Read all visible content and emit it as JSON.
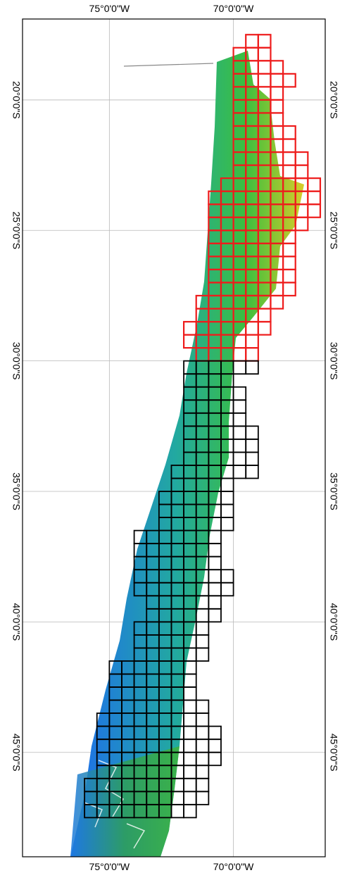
{
  "map": {
    "x_ticks": [
      {
        "label": "75°0'0\"W",
        "lon": -75
      },
      {
        "label": "70°0'0\"W",
        "lon": -70
      }
    ],
    "y_ticks": [
      {
        "label": "20°0'0\"S",
        "lat": -20
      },
      {
        "label": "25°0'0\"S",
        "lat": -25
      },
      {
        "label": "30°0'0\"S",
        "lat": -30
      },
      {
        "label": "35°0'0\"S",
        "lat": -35
      },
      {
        "label": "40°0'0\"S",
        "lat": -40
      },
      {
        "label": "45°0'0\"S",
        "lat": -45
      }
    ],
    "lon_range": [
      -78.5,
      -66.3
    ],
    "lat_range": [
      -49.0,
      -16.9
    ],
    "grid": true,
    "tile_size_deg": 0.5,
    "colors": {
      "red_tiles": "#ee1c1c",
      "black_tiles": "#000000",
      "gridline": "#b9b9b9",
      "elevation_low": "#1e6cf0",
      "elevation_mid": "#27b36a",
      "elevation_high": "#d8cc2a"
    },
    "red_tile_rows": [
      {
        "lat": -17.5,
        "lons": [
          -69.5,
          -69
        ]
      },
      {
        "lat": -18,
        "lons": [
          -70,
          -69.5,
          -69
        ]
      },
      {
        "lat": -18.5,
        "lons": [
          -70,
          -69.5,
          -69,
          -68.5
        ]
      },
      {
        "lat": -19,
        "lons": [
          -70,
          -69.5,
          -69,
          -68.5,
          -68
        ]
      },
      {
        "lat": -19.5,
        "lons": [
          -70,
          -69.5,
          -69,
          -68.5
        ]
      },
      {
        "lat": -20,
        "lons": [
          -70,
          -69.5,
          -69,
          -68.5
        ]
      },
      {
        "lat": -20.5,
        "lons": [
          -70,
          -69.5,
          -69,
          -68.5
        ]
      },
      {
        "lat": -21,
        "lons": [
          -70,
          -69.5,
          -69,
          -68.5,
          -68
        ]
      },
      {
        "lat": -21.5,
        "lons": [
          -70,
          -69.5,
          -69,
          -68.5,
          -68
        ]
      },
      {
        "lat": -22,
        "lons": [
          -70,
          -69.5,
          -69,
          -68.5,
          -68,
          -67.5
        ]
      },
      {
        "lat": -22.5,
        "lons": [
          -70,
          -69.5,
          -69,
          -68.5,
          -68,
          -67.5
        ]
      },
      {
        "lat": -23,
        "lons": [
          -70.5,
          -70,
          -69.5,
          -69,
          -68.5,
          -68,
          -67.5,
          -67
        ]
      },
      {
        "lat": -23.5,
        "lons": [
          -71,
          -70.5,
          -70,
          -69.5,
          -69,
          -68.5,
          -68,
          -67.5,
          -67
        ]
      },
      {
        "lat": -24,
        "lons": [
          -71,
          -70.5,
          -70,
          -69.5,
          -69,
          -68.5,
          -68,
          -67.5,
          -67
        ]
      },
      {
        "lat": -24.5,
        "lons": [
          -71,
          -70.5,
          -70,
          -69.5,
          -69,
          -68.5,
          -68,
          -67.5
        ]
      },
      {
        "lat": -25,
        "lons": [
          -71,
          -70.5,
          -70,
          -69.5,
          -69,
          -68.5,
          -68
        ]
      },
      {
        "lat": -25.5,
        "lons": [
          -71,
          -70.5,
          -70,
          -69.5,
          -69,
          -68.5,
          -68
        ]
      },
      {
        "lat": -26,
        "lons": [
          -71,
          -70.5,
          -70,
          -69.5,
          -69,
          -68.5,
          -68
        ]
      },
      {
        "lat": -26.5,
        "lons": [
          -71,
          -70.5,
          -70,
          -69.5,
          -69,
          -68.5,
          -68
        ]
      },
      {
        "lat": -27,
        "lons": [
          -71,
          -70.5,
          -70,
          -69.5,
          -69,
          -68.5,
          -68
        ]
      },
      {
        "lat": -27.5,
        "lons": [
          -71.5,
          -71,
          -70.5,
          -70,
          -69.5,
          -69,
          -68.5
        ]
      },
      {
        "lat": -28,
        "lons": [
          -71.5,
          -71,
          -70.5,
          -70,
          -69.5,
          -69
        ]
      },
      {
        "lat": -28.5,
        "lons": [
          -72,
          -71.5,
          -71,
          -70.5,
          -70,
          -69.5,
          -69
        ]
      },
      {
        "lat": -29,
        "lons": [
          -72,
          -71.5,
          -71,
          -70.5,
          -70,
          -69.5
        ]
      },
      {
        "lat": -29.5,
        "lons": [
          -71.5,
          -71,
          -70.5,
          -70,
          -69.5
        ]
      }
    ],
    "black_tile_rows": [
      {
        "lat": -30,
        "lons": [
          -72,
          -71.5,
          -71,
          -70.5,
          -70,
          -69.5
        ]
      },
      {
        "lat": -30.5,
        "lons": [
          -72,
          -71.5,
          -71,
          -70.5
        ]
      },
      {
        "lat": -31,
        "lons": [
          -72,
          -71.5,
          -71,
          -70.5,
          -70
        ]
      },
      {
        "lat": -31.5,
        "lons": [
          -72,
          -71.5,
          -71,
          -70.5,
          -70
        ]
      },
      {
        "lat": -32,
        "lons": [
          -72,
          -71.5,
          -71,
          -70.5,
          -70
        ]
      },
      {
        "lat": -32.5,
        "lons": [
          -72,
          -71.5,
          -71,
          -70.5,
          -70,
          -69.5
        ]
      },
      {
        "lat": -33,
        "lons": [
          -72,
          -71.5,
          -71,
          -70.5,
          -70,
          -69.5
        ]
      },
      {
        "lat": -33.5,
        "lons": [
          -72,
          -71.5,
          -71,
          -70.5,
          -70,
          -69.5
        ]
      },
      {
        "lat": -34,
        "lons": [
          -72.5,
          -72,
          -71.5,
          -71,
          -70.5,
          -70,
          -69.5
        ]
      },
      {
        "lat": -34.5,
        "lons": [
          -72.5,
          -72,
          -71.5,
          -71,
          -70.5
        ]
      },
      {
        "lat": -35,
        "lons": [
          -73,
          -72.5,
          -72,
          -71.5,
          -71,
          -70.5
        ]
      },
      {
        "lat": -35.5,
        "lons": [
          -73,
          -72.5,
          -72,
          -71.5,
          -71,
          -70.5
        ]
      },
      {
        "lat": -36,
        "lons": [
          -73,
          -72.5,
          -72,
          -71.5,
          -71,
          -70.5
        ]
      },
      {
        "lat": -36.5,
        "lons": [
          -74,
          -73.5,
          -73,
          -72.5,
          -72,
          -71.5,
          -71
        ]
      },
      {
        "lat": -37,
        "lons": [
          -74,
          -73.5,
          -73,
          -72.5,
          -72,
          -71.5,
          -71
        ]
      },
      {
        "lat": -37.5,
        "lons": [
          -74,
          -73.5,
          -73,
          -72.5,
          -72,
          -71.5,
          -71
        ]
      },
      {
        "lat": -38,
        "lons": [
          -74,
          -73.5,
          -73,
          -72.5,
          -72,
          -71.5,
          -71,
          -70.5
        ]
      },
      {
        "lat": -38.5,
        "lons": [
          -74,
          -73.5,
          -73,
          -72.5,
          -72,
          -71.5,
          -71,
          -70.5
        ]
      },
      {
        "lat": -39,
        "lons": [
          -73.5,
          -73,
          -72.5,
          -72,
          -71.5,
          -71
        ]
      },
      {
        "lat": -39.5,
        "lons": [
          -73.5,
          -73,
          -72.5,
          -72,
          -71.5,
          -71
        ]
      },
      {
        "lat": -40,
        "lons": [
          -74,
          -73.5,
          -73,
          -72.5,
          -72,
          -71.5
        ]
      },
      {
        "lat": -40.5,
        "lons": [
          -74,
          -73.5,
          -73,
          -72.5,
          -72,
          -71.5
        ]
      },
      {
        "lat": -41,
        "lons": [
          -74,
          -73.5,
          -73,
          -72.5,
          -72,
          -71.5
        ]
      },
      {
        "lat": -41.5,
        "lons": [
          -75,
          -74.5,
          -74,
          -73.5,
          -73,
          -72.5,
          -72
        ]
      },
      {
        "lat": -42,
        "lons": [
          -75,
          -74.5,
          -74,
          -73.5,
          -73,
          -72.5,
          -72
        ]
      },
      {
        "lat": -42.5,
        "lons": [
          -75,
          -74.5,
          -74,
          -73.5,
          -73,
          -72.5,
          -72
        ]
      },
      {
        "lat": -43,
        "lons": [
          -75,
          -74.5,
          -74,
          -73.5,
          -73,
          -72.5,
          -72,
          -71.5
        ]
      },
      {
        "lat": -43.5,
        "lons": [
          -75.5,
          -75,
          -74.5,
          -74,
          -73.5,
          -73,
          -72.5,
          -72,
          -71.5
        ]
      },
      {
        "lat": -44,
        "lons": [
          -75.5,
          -75,
          -74.5,
          -74,
          -73.5,
          -73,
          -72.5,
          -72,
          -71.5,
          -71
        ]
      },
      {
        "lat": -44.5,
        "lons": [
          -75.5,
          -75,
          -74.5,
          -74,
          -73.5,
          -73,
          -72.5,
          -72,
          -71.5,
          -71
        ]
      },
      {
        "lat": -45,
        "lons": [
          -75.5,
          -75,
          -74.5,
          -74,
          -73.5,
          -73,
          -72.5,
          -72,
          -71.5,
          -71
        ]
      },
      {
        "lat": -45.5,
        "lons": [
          -75.5,
          -75,
          -74.5,
          -74,
          -73.5,
          -73,
          -72.5,
          -72,
          -71.5
        ]
      },
      {
        "lat": -46,
        "lons": [
          -76,
          -75.5,
          -75,
          -74.5,
          -74,
          -73.5,
          -73,
          -72.5,
          -72,
          -71.5
        ]
      },
      {
        "lat": -46.5,
        "lons": [
          -76,
          -75.5,
          -75,
          -74.5,
          -74,
          -73.5,
          -73,
          -72.5,
          -72,
          -71.5
        ]
      },
      {
        "lat": -47,
        "lons": [
          -76,
          -75.5,
          -75,
          -74.5,
          -74,
          -73.5,
          -73,
          -72.5,
          -72
        ]
      }
    ]
  }
}
